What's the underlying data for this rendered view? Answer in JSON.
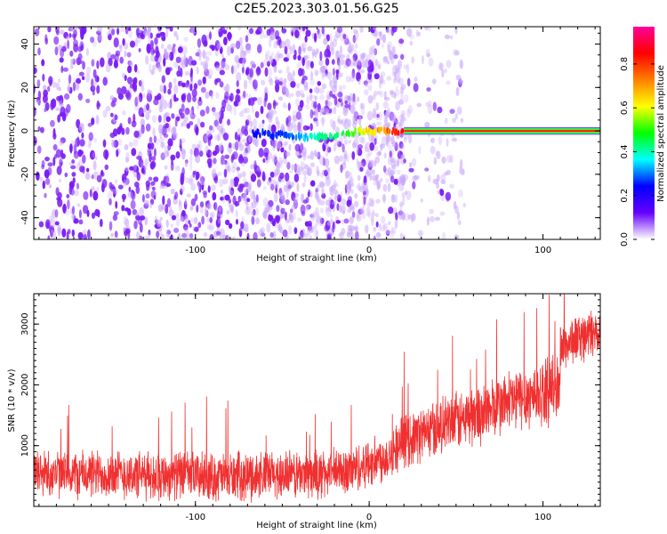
{
  "title": "C2E5.2023.303.01.56.G25",
  "chart_data": [
    {
      "type": "heatmap",
      "title": "C2E5.2023.303.01.56.G25",
      "xlabel": "Height of straight line (km)",
      "ylabel": "Frequency (Hz)",
      "xlim": [
        -193,
        133
      ],
      "ylim": [
        -50,
        48
      ],
      "xticks": [
        -100,
        0,
        100
      ],
      "yticks": [
        -40,
        -20,
        0,
        20,
        40
      ],
      "colorbar": {
        "label": "Normalized spectral amplitude",
        "range": [
          0.0,
          0.97
        ],
        "ticks": [
          0.0,
          0.2,
          0.4,
          0.6,
          0.8
        ],
        "colormap": [
          "#ffffff",
          "#6600ff",
          "#0000ff",
          "#00ffff",
          "#00ff00",
          "#ffff00",
          "#ff8000",
          "#ff0000",
          "#ff0099"
        ]
      },
      "signal_track": [
        {
          "x": -70,
          "y": -1,
          "amp": 0.25
        },
        {
          "x": -50,
          "y": -2,
          "amp": 0.3
        },
        {
          "x": -40,
          "y": -3,
          "amp": 0.35
        },
        {
          "x": -30,
          "y": -3,
          "amp": 0.45
        },
        {
          "x": -20,
          "y": -2,
          "amp": 0.5
        },
        {
          "x": -10,
          "y": -1,
          "amp": 0.55
        },
        {
          "x": 0,
          "y": 0,
          "amp": 0.7
        },
        {
          "x": 20,
          "y": 0,
          "amp": 0.95
        },
        {
          "x": 133,
          "y": 0,
          "amp": 0.95
        }
      ],
      "noise_extent_x": [
        -193,
        15
      ]
    },
    {
      "type": "line",
      "xlabel": "Height of straight line (km)",
      "ylabel": "SNR (10 * v/v)",
      "xlim": [
        -193,
        133
      ],
      "ylim": [
        0,
        3500
      ],
      "xticks": [
        -100,
        0,
        100
      ],
      "yticks": [
        1000,
        2000,
        3000
      ],
      "color": "#f03030",
      "x": [
        -193,
        -170,
        -150,
        -130,
        -110,
        -90,
        -70,
        -50,
        -30,
        -10,
        0,
        10,
        20,
        40,
        60,
        80,
        100,
        110,
        112,
        120,
        133
      ],
      "y": [
        560,
        520,
        540,
        500,
        520,
        480,
        500,
        520,
        520,
        600,
        720,
        820,
        1080,
        1300,
        1480,
        1720,
        1880,
        1960,
        2640,
        2780,
        2860
      ],
      "y_spread": [
        380,
        380,
        380,
        380,
        380,
        380,
        380,
        380,
        380,
        380,
        380,
        380,
        420,
        450,
        480,
        500,
        520,
        540,
        380,
        380,
        400
      ]
    }
  ]
}
